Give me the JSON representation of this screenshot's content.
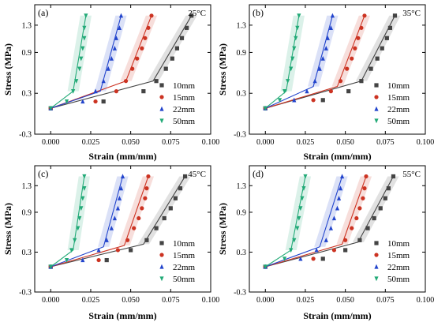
{
  "figure": {
    "x_label": "Strain  (mm/mm)",
    "y_label": "Stress  (MPa)"
  },
  "chart_data": [
    {
      "type": "scatter",
      "panel_label": "(a)",
      "temperature_label": "25°C",
      "xlabel": "Strain  (mm/mm)",
      "ylabel": "Stress  (MPa)",
      "xlim": [
        -0.01,
        0.1
      ],
      "ylim": [
        -0.3,
        1.6
      ],
      "xticks": [
        "0.000",
        "0.025",
        "0.050",
        "0.075",
        "0.100"
      ],
      "yticks": [
        "-0.3",
        "0.3",
        "0.9",
        "1.3"
      ],
      "legend_position": "bottom-right",
      "series": [
        {
          "name": "10mm",
          "color": "#444444",
          "marker": "square",
          "points": [
            [
              0.0,
              0.08
            ],
            [
              0.033,
              0.18
            ],
            [
              0.058,
              0.33
            ],
            [
              0.066,
              0.48
            ],
            [
              0.072,
              0.66
            ],
            [
              0.076,
              0.81
            ],
            [
              0.079,
              0.96
            ],
            [
              0.082,
              1.11
            ],
            [
              0.085,
              1.26
            ],
            [
              0.088,
              1.44
            ]
          ],
          "fit": [
            [
              0.0,
              0.08
            ],
            [
              0.064,
              0.48
            ],
            [
              0.088,
              1.44
            ]
          ]
        },
        {
          "name": "15mm",
          "color": "#cc3322",
          "marker": "circle",
          "points": [
            [
              0.0,
              0.08
            ],
            [
              0.028,
              0.18
            ],
            [
              0.041,
              0.33
            ],
            [
              0.047,
              0.48
            ],
            [
              0.051,
              0.66
            ],
            [
              0.054,
              0.81
            ],
            [
              0.057,
              0.96
            ],
            [
              0.059,
              1.11
            ],
            [
              0.061,
              1.26
            ],
            [
              0.063,
              1.44
            ]
          ],
          "fit": [
            [
              0.0,
              0.08
            ],
            [
              0.047,
              0.48
            ],
            [
              0.063,
              1.44
            ]
          ]
        },
        {
          "name": "22mm",
          "color": "#2244cc",
          "marker": "triangle-up",
          "points": [
            [
              0.0,
              0.08
            ],
            [
              0.02,
              0.18
            ],
            [
              0.028,
              0.33
            ],
            [
              0.033,
              0.48
            ],
            [
              0.036,
              0.66
            ],
            [
              0.038,
              0.81
            ],
            [
              0.04,
              0.96
            ],
            [
              0.041,
              1.11
            ],
            [
              0.043,
              1.26
            ],
            [
              0.044,
              1.44
            ]
          ],
          "fit": [
            [
              0.0,
              0.08
            ],
            [
              0.031,
              0.33
            ],
            [
              0.044,
              1.44
            ]
          ]
        },
        {
          "name": "50mm",
          "color": "#22aa77",
          "marker": "triangle-down",
          "points": [
            [
              0.0,
              0.08
            ],
            [
              0.01,
              0.18
            ],
            [
              0.014,
              0.33
            ],
            [
              0.016,
              0.48
            ],
            [
              0.018,
              0.66
            ],
            [
              0.019,
              0.81
            ],
            [
              0.02,
              0.96
            ],
            [
              0.021,
              1.11
            ],
            [
              0.021,
              1.26
            ],
            [
              0.022,
              1.44
            ]
          ],
          "fit": [
            [
              0.0,
              0.08
            ],
            [
              0.014,
              0.33
            ],
            [
              0.022,
              1.44
            ]
          ]
        }
      ]
    },
    {
      "type": "scatter",
      "panel_label": "(b)",
      "temperature_label": "35°C",
      "xlabel": "Strain  (mm/mm)",
      "ylabel": "Stress  (MPa)",
      "xlim": [
        -0.01,
        0.1
      ],
      "ylim": [
        -0.3,
        1.6
      ],
      "xticks": [
        "0.000",
        "0.025",
        "0.050",
        "0.075",
        "0.100"
      ],
      "yticks": [
        "-0.3",
        "0.3",
        "0.9",
        "1.3"
      ],
      "legend_position": "bottom-right",
      "series": [
        {
          "name": "10mm",
          "color": "#444444",
          "marker": "square",
          "points": [
            [
              0.0,
              0.08
            ],
            [
              0.036,
              0.2
            ],
            [
              0.052,
              0.33
            ],
            [
              0.06,
              0.48
            ],
            [
              0.066,
              0.66
            ],
            [
              0.07,
              0.81
            ],
            [
              0.073,
              0.96
            ],
            [
              0.076,
              1.11
            ],
            [
              0.078,
              1.26
            ],
            [
              0.081,
              1.44
            ]
          ],
          "fit": [
            [
              0.0,
              0.08
            ],
            [
              0.06,
              0.48
            ],
            [
              0.081,
              1.44
            ]
          ]
        },
        {
          "name": "15mm",
          "color": "#cc3322",
          "marker": "circle",
          "points": [
            [
              0.0,
              0.08
            ],
            [
              0.03,
              0.2
            ],
            [
              0.041,
              0.33
            ],
            [
              0.047,
              0.48
            ],
            [
              0.051,
              0.66
            ],
            [
              0.054,
              0.81
            ],
            [
              0.056,
              0.96
            ],
            [
              0.058,
              1.11
            ],
            [
              0.06,
              1.26
            ],
            [
              0.062,
              1.44
            ]
          ],
          "fit": [
            [
              0.0,
              0.08
            ],
            [
              0.045,
              0.4
            ],
            [
              0.062,
              1.44
            ]
          ]
        },
        {
          "name": "22mm",
          "color": "#2244cc",
          "marker": "triangle-up",
          "points": [
            [
              0.0,
              0.08
            ],
            [
              0.018,
              0.2
            ],
            [
              0.026,
              0.33
            ],
            [
              0.031,
              0.48
            ],
            [
              0.034,
              0.66
            ],
            [
              0.036,
              0.81
            ],
            [
              0.038,
              0.96
            ],
            [
              0.039,
              1.11
            ],
            [
              0.041,
              1.26
            ],
            [
              0.042,
              1.44
            ]
          ],
          "fit": [
            [
              0.0,
              0.08
            ],
            [
              0.03,
              0.4
            ],
            [
              0.042,
              1.44
            ]
          ]
        },
        {
          "name": "50mm",
          "color": "#22aa77",
          "marker": "triangle-down",
          "points": [
            [
              0.0,
              0.08
            ],
            [
              0.009,
              0.2
            ],
            [
              0.012,
              0.33
            ],
            [
              0.014,
              0.48
            ],
            [
              0.016,
              0.66
            ],
            [
              0.017,
              0.81
            ],
            [
              0.018,
              0.96
            ],
            [
              0.019,
              1.11
            ],
            [
              0.02,
              1.26
            ],
            [
              0.021,
              1.44
            ]
          ],
          "fit": [
            [
              0.0,
              0.08
            ],
            [
              0.013,
              0.33
            ],
            [
              0.021,
              1.44
            ]
          ]
        }
      ]
    },
    {
      "type": "scatter",
      "panel_label": "(c)",
      "temperature_label": "45°C",
      "xlabel": "Strain  (mm/mm)",
      "ylabel": "Stress  (MPa)",
      "xlim": [
        -0.01,
        0.1
      ],
      "ylim": [
        -0.3,
        1.6
      ],
      "xticks": [
        "0.000",
        "0.025",
        "0.050",
        "0.075",
        "0.100"
      ],
      "yticks": [
        "-0.3",
        "0.3",
        "0.9",
        "1.3"
      ],
      "legend_position": "bottom-right",
      "series": [
        {
          "name": "10mm",
          "color": "#444444",
          "marker": "square",
          "points": [
            [
              0.0,
              0.08
            ],
            [
              0.035,
              0.18
            ],
            [
              0.05,
              0.33
            ],
            [
              0.06,
              0.48
            ],
            [
              0.066,
              0.66
            ],
            [
              0.071,
              0.81
            ],
            [
              0.075,
              0.96
            ],
            [
              0.078,
              1.11
            ],
            [
              0.081,
              1.26
            ],
            [
              0.084,
              1.44
            ]
          ],
          "fit": [
            [
              0.0,
              0.08
            ],
            [
              0.058,
              0.42
            ],
            [
              0.084,
              1.44
            ]
          ]
        },
        {
          "name": "15mm",
          "color": "#cc3322",
          "marker": "circle",
          "points": [
            [
              0.0,
              0.08
            ],
            [
              0.03,
              0.18
            ],
            [
              0.042,
              0.33
            ],
            [
              0.048,
              0.48
            ],
            [
              0.052,
              0.66
            ],
            [
              0.055,
              0.81
            ],
            [
              0.057,
              0.96
            ],
            [
              0.059,
              1.11
            ],
            [
              0.06,
              1.26
            ],
            [
              0.061,
              1.44
            ]
          ],
          "fit": [
            [
              0.0,
              0.08
            ],
            [
              0.046,
              0.4
            ],
            [
              0.061,
              1.44
            ]
          ]
        },
        {
          "name": "22mm",
          "color": "#2244cc",
          "marker": "triangle-up",
          "points": [
            [
              0.0,
              0.08
            ],
            [
              0.02,
              0.18
            ],
            [
              0.03,
              0.33
            ],
            [
              0.035,
              0.48
            ],
            [
              0.038,
              0.66
            ],
            [
              0.04,
              0.81
            ],
            [
              0.042,
              0.96
            ],
            [
              0.043,
              1.11
            ],
            [
              0.044,
              1.26
            ],
            [
              0.045,
              1.44
            ]
          ],
          "fit": [
            [
              0.0,
              0.08
            ],
            [
              0.033,
              0.38
            ],
            [
              0.045,
              1.44
            ]
          ]
        },
        {
          "name": "50mm",
          "color": "#22aa77",
          "marker": "triangle-down",
          "points": [
            [
              0.0,
              0.08
            ],
            [
              0.01,
              0.18
            ],
            [
              0.013,
              0.33
            ],
            [
              0.015,
              0.48
            ],
            [
              0.017,
              0.66
            ],
            [
              0.018,
              0.81
            ],
            [
              0.019,
              0.96
            ],
            [
              0.02,
              1.11
            ],
            [
              0.021,
              1.26
            ],
            [
              0.021,
              1.44
            ]
          ],
          "fit": [
            [
              0.0,
              0.08
            ],
            [
              0.014,
              0.33
            ],
            [
              0.021,
              1.44
            ]
          ]
        }
      ]
    },
    {
      "type": "scatter",
      "panel_label": "(d)",
      "temperature_label": "55°C",
      "xlabel": "Strain  (mm/mm)",
      "ylabel": "Stress  (MPa)",
      "xlim": [
        -0.01,
        0.1
      ],
      "ylim": [
        -0.3,
        1.6
      ],
      "xticks": [
        "0.000",
        "0.025",
        "0.050",
        "0.075",
        "0.100"
      ],
      "yticks": [
        "-0.3",
        "0.3",
        "0.9",
        "1.3"
      ],
      "legend_position": "bottom-right",
      "series": [
        {
          "name": "10mm",
          "color": "#444444",
          "marker": "square",
          "points": [
            [
              0.0,
              0.08
            ],
            [
              0.036,
              0.2
            ],
            [
              0.05,
              0.33
            ],
            [
              0.059,
              0.48
            ],
            [
              0.064,
              0.66
            ],
            [
              0.068,
              0.81
            ],
            [
              0.072,
              0.96
            ],
            [
              0.075,
              1.11
            ],
            [
              0.077,
              1.26
            ],
            [
              0.08,
              1.44
            ]
          ],
          "fit": [
            [
              0.0,
              0.08
            ],
            [
              0.058,
              0.45
            ],
            [
              0.08,
              1.44
            ]
          ]
        },
        {
          "name": "15mm",
          "color": "#cc3322",
          "marker": "circle",
          "points": [
            [
              0.0,
              0.08
            ],
            [
              0.03,
              0.2
            ],
            [
              0.043,
              0.33
            ],
            [
              0.05,
              0.48
            ],
            [
              0.054,
              0.66
            ],
            [
              0.057,
              0.81
            ],
            [
              0.059,
              0.96
            ],
            [
              0.061,
              1.11
            ],
            [
              0.062,
              1.26
            ],
            [
              0.063,
              1.44
            ]
          ],
          "fit": [
            [
              0.0,
              0.08
            ],
            [
              0.048,
              0.42
            ],
            [
              0.063,
              1.44
            ]
          ]
        },
        {
          "name": "22mm",
          "color": "#2244cc",
          "marker": "triangle-up",
          "points": [
            [
              0.0,
              0.08
            ],
            [
              0.022,
              0.2
            ],
            [
              0.032,
              0.33
            ],
            [
              0.038,
              0.48
            ],
            [
              0.041,
              0.66
            ],
            [
              0.043,
              0.81
            ],
            [
              0.045,
              0.96
            ],
            [
              0.046,
              1.11
            ],
            [
              0.047,
              1.26
            ],
            [
              0.048,
              1.44
            ]
          ],
          "fit": [
            [
              0.0,
              0.08
            ],
            [
              0.034,
              0.38
            ],
            [
              0.048,
              1.44
            ]
          ]
        },
        {
          "name": "50mm",
          "color": "#22aa77",
          "marker": "triangle-down",
          "points": [
            [
              0.0,
              0.08
            ],
            [
              0.012,
              0.2
            ],
            [
              0.016,
              0.33
            ],
            [
              0.018,
              0.48
            ],
            [
              0.02,
              0.66
            ],
            [
              0.021,
              0.81
            ],
            [
              0.022,
              0.96
            ],
            [
              0.023,
              1.11
            ],
            [
              0.024,
              1.26
            ],
            [
              0.025,
              1.44
            ]
          ],
          "fit": [
            [
              0.0,
              0.08
            ],
            [
              0.016,
              0.33
            ],
            [
              0.025,
              1.44
            ]
          ]
        }
      ]
    }
  ]
}
